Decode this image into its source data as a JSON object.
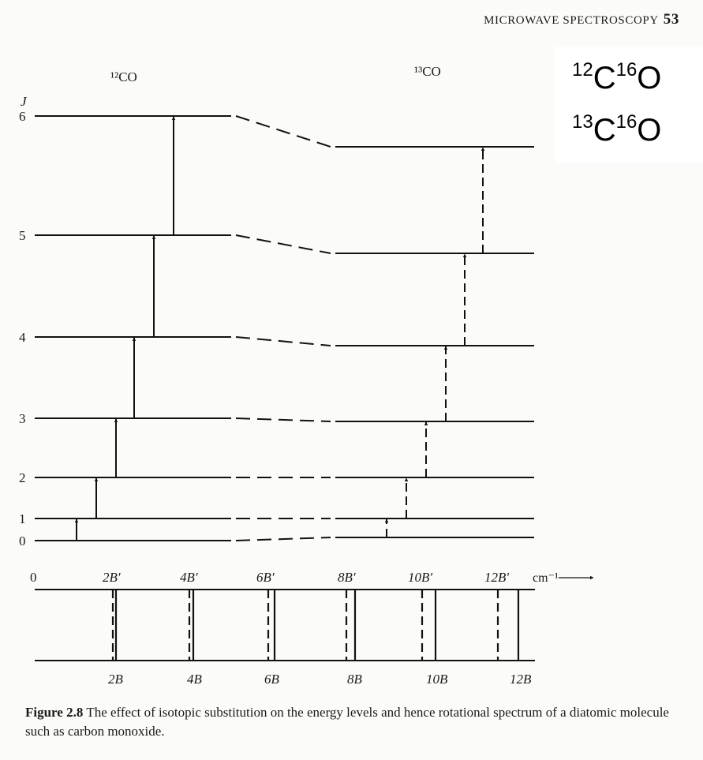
{
  "header": {
    "title": "MICROWAVE SPECTROSCOPY",
    "page_number": "53"
  },
  "labels": {
    "left_molecule": "¹²CO",
    "right_molecule": "¹³CO",
    "axis_symbol": "J",
    "spectrum_unit": "cm⁻¹",
    "spectrum_zero": "0"
  },
  "formula_box": {
    "formula1": {
      "mass_c": "12",
      "c": "C",
      "mass_o": "16",
      "o": "O"
    },
    "formula2": {
      "mass_c": "13",
      "c": "C",
      "mass_o": "16",
      "o": "O"
    }
  },
  "levels_12CO": [
    {
      "J": "0"
    },
    {
      "J": "1"
    },
    {
      "J": "2"
    },
    {
      "J": "3"
    },
    {
      "J": "4"
    },
    {
      "J": "5"
    },
    {
      "J": "6"
    }
  ],
  "spectrum": {
    "top_labels": [
      "2B′",
      "4B′",
      "6B′",
      "8B′",
      "10B′",
      "12B′"
    ],
    "bottom_labels": [
      "2B",
      "4B",
      "6B",
      "8B",
      "10B",
      "12B"
    ]
  },
  "caption": {
    "figure_label": "Figure 2.8",
    "text": "The effect of isotopic substitution on the energy levels and hence rotational spectrum of a diatomic molecule such as carbon monoxide."
  }
}
